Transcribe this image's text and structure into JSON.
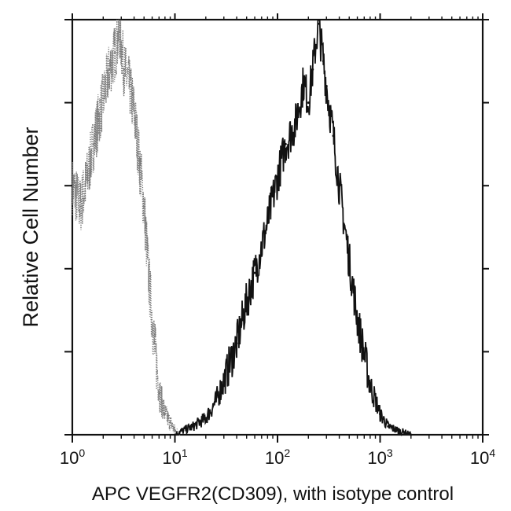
{
  "chart_data": {
    "type": "area",
    "xlabel": "APC VEGFR2(CD309), with isotype control",
    "ylabel": "Relative Cell Number",
    "xscale": "log",
    "xlim": [
      1,
      10000
    ],
    "ylim": [
      0,
      100
    ],
    "x_ticks": [
      {
        "base": "10",
        "exp": "0",
        "value": 1
      },
      {
        "base": "10",
        "exp": "1",
        "value": 10
      },
      {
        "base": "10",
        "exp": "2",
        "value": 100
      },
      {
        "base": "10",
        "exp": "3",
        "value": 1000
      },
      {
        "base": "10",
        "exp": "4",
        "value": 10000
      }
    ],
    "y_minor_ticks": 5,
    "grid": false,
    "legend": "none",
    "series": [
      {
        "style": "dotted-light",
        "color": "#7a7a7a",
        "x": [
          1.0,
          1.2,
          1.4,
          1.6,
          1.8,
          2.0,
          2.3,
          2.6,
          2.9,
          3.2,
          3.6,
          4.0,
          4.5,
          5.0,
          5.6,
          6.3,
          7.1,
          8.0,
          9.0,
          10.0,
          11.0
        ],
        "y": [
          60,
          55,
          62,
          70,
          76,
          81,
          88,
          92,
          97,
          88,
          84,
          78,
          66,
          55,
          37,
          22,
          10,
          5,
          3,
          1,
          0
        ]
      },
      {
        "style": "solid-dark",
        "color": "#111111",
        "x": [
          10,
          12,
          15,
          20,
          25,
          30,
          40,
          50,
          60,
          80,
          100,
          120,
          150,
          180,
          200,
          220,
          250,
          280,
          300,
          350,
          400,
          500,
          600,
          800,
          1000,
          1200,
          1500,
          2000
        ],
        "y": [
          0,
          1,
          2,
          4,
          8,
          13,
          22,
          32,
          39,
          51,
          62,
          70,
          75,
          85,
          80,
          88,
          99,
          90,
          84,
          72,
          60,
          42,
          28,
          12,
          5,
          2,
          1,
          0
        ]
      }
    ]
  }
}
